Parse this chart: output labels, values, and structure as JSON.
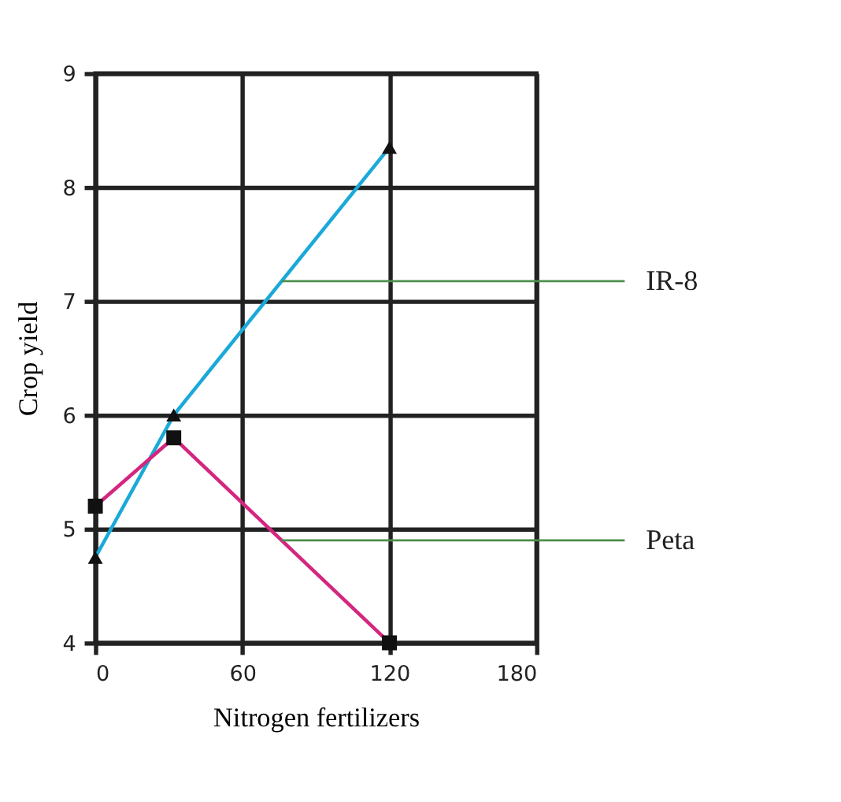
{
  "chart_data": {
    "type": "line",
    "xlabel": "Nitrogen fertilizers",
    "ylabel": "Crop yield",
    "x": [
      0,
      32,
      120
    ],
    "series": [
      {
        "name": "IR-8",
        "color": "#1aa9d8",
        "marker": "triangle",
        "values": [
          4.75,
          6.0,
          8.35
        ]
      },
      {
        "name": "Peta",
        "color": "#d4267f",
        "marker": "square",
        "values": [
          5.2,
          5.8,
          4.0
        ]
      }
    ],
    "xlim": [
      0,
      180
    ],
    "xticks": [
      0,
      60,
      120,
      180
    ],
    "ylim": [
      4,
      9
    ],
    "yticks": [
      4,
      5,
      6,
      7,
      8,
      9
    ],
    "grid": true,
    "legend": false
  }
}
